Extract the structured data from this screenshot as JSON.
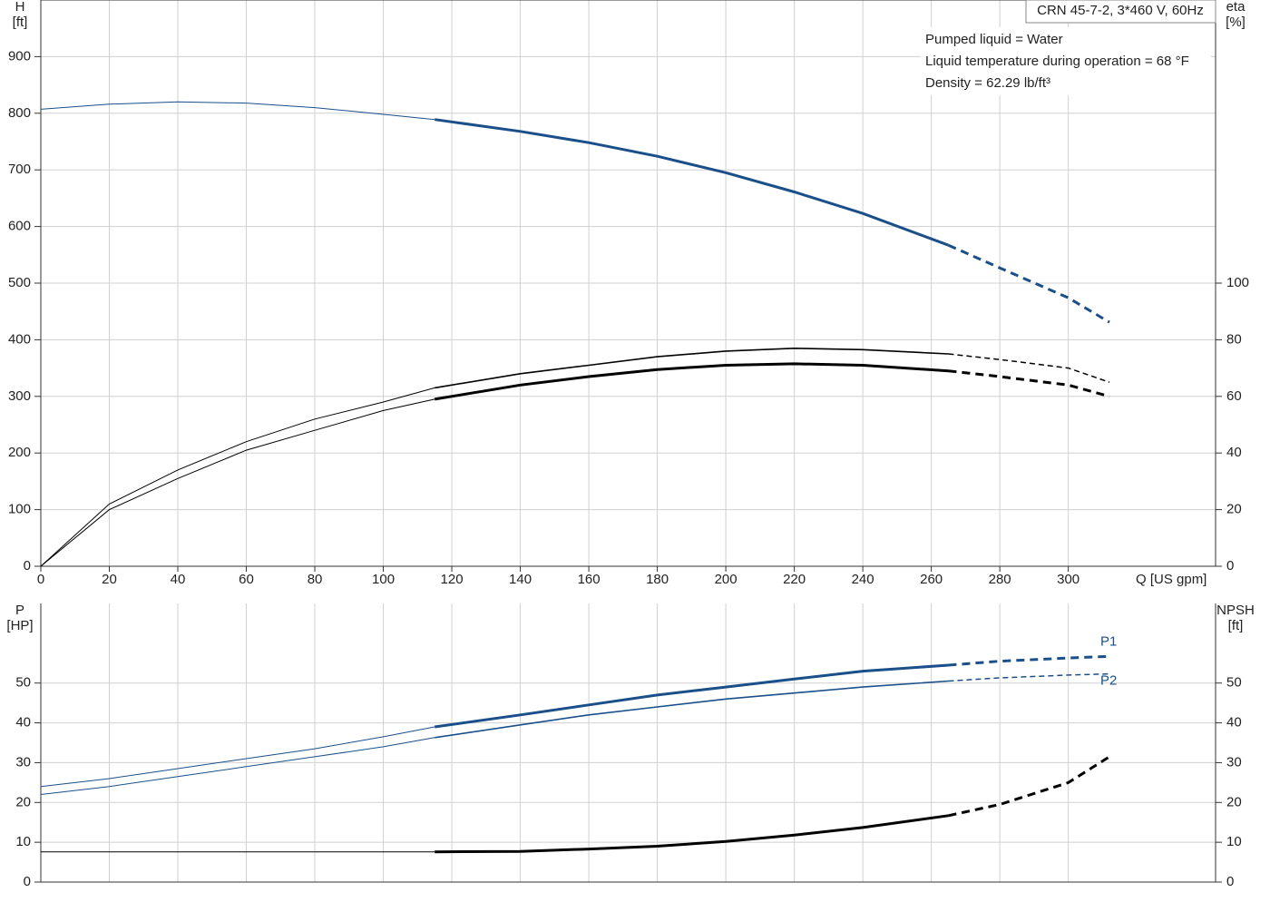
{
  "chart_data": [
    {
      "type": "line",
      "title": "CRN 45-7-2, 3*460 V, 60Hz",
      "notes": [
        "Pumped liquid = Water",
        "Liquid temperature during operation = 68 °F",
        "Density = 62.29 lb/ft³"
      ],
      "x_label": "Q [US gpm]",
      "y_label": "H",
      "y_unit": "[ft]",
      "y2_label": "eta",
      "y2_unit": "[%]",
      "xlim": [
        0,
        343
      ],
      "xticks": [
        0,
        20,
        40,
        60,
        80,
        100,
        120,
        140,
        160,
        180,
        200,
        220,
        240,
        260,
        280,
        300
      ],
      "ylim": [
        0,
        1000
      ],
      "yticks": [
        0,
        100,
        200,
        300,
        400,
        500,
        600,
        700,
        800,
        900
      ],
      "y2lim": [
        0,
        200
      ],
      "y2ticks": [
        0,
        20,
        40,
        60,
        80,
        100
      ],
      "grid": true,
      "series": [
        {
          "color": "#1a4f8a",
          "axis": "y",
          "segments": [
            {
              "style": "thin",
              "x": [
                0,
                20,
                40,
                60,
                80,
                100,
                115
              ],
              "values": [
                807,
                816,
                820,
                818,
                810,
                798,
                789
              ]
            },
            {
              "style": "thick",
              "x": [
                115,
                140,
                160,
                180,
                200,
                220,
                240,
                265
              ],
              "values": [
                789,
                768,
                748,
                724,
                695,
                661,
                623,
                567
              ]
            },
            {
              "style": "dashed",
              "x": [
                265,
                280,
                300,
                312
              ],
              "values": [
                567,
                527,
                474,
                431
              ]
            }
          ]
        },
        {
          "color": "#000000",
          "axis": "y2",
          "segments": [
            {
              "style": "thin",
              "x": [
                0,
                20,
                40,
                60,
                80,
                100,
                115
              ],
              "values": [
                0,
                22,
                34,
                44,
                52,
                58,
                63
              ]
            },
            {
              "style": "medium",
              "x": [
                115,
                140,
                160,
                180,
                200,
                220,
                240,
                265
              ],
              "values": [
                63,
                68,
                71,
                74,
                76,
                77,
                76.5,
                75
              ]
            },
            {
              "style": "thin-dashed",
              "x": [
                265,
                280,
                300,
                312
              ],
              "values": [
                75,
                73,
                70,
                65
              ]
            }
          ]
        },
        {
          "color": "#000000",
          "axis": "y2",
          "segments": [
            {
              "style": "thin",
              "x": [
                0,
                20,
                40,
                60,
                80,
                100,
                115
              ],
              "values": [
                0,
                20,
                31,
                41,
                48,
                55,
                59
              ]
            },
            {
              "style": "thick",
              "x": [
                115,
                140,
                160,
                180,
                200,
                220,
                240,
                265
              ],
              "values": [
                59,
                64,
                67,
                69.5,
                71,
                71.5,
                71,
                69
              ]
            },
            {
              "style": "dashed",
              "x": [
                265,
                280,
                300,
                312
              ],
              "values": [
                69,
                67,
                64,
                60
              ]
            }
          ]
        }
      ]
    },
    {
      "type": "line",
      "y_label": "P",
      "y_unit": "[HP]",
      "y2_label": "NPSH",
      "y2_unit": "[ft]",
      "xlim": [
        0,
        343
      ],
      "xticks": [
        0,
        20,
        40,
        60,
        80,
        100,
        120,
        140,
        160,
        180,
        200,
        220,
        240,
        260,
        280,
        300
      ],
      "ylim": [
        0,
        70
      ],
      "yticks": [
        0,
        10,
        20,
        30,
        40,
        50
      ],
      "y2lim": [
        0,
        70
      ],
      "y2ticks": [
        0,
        10,
        20,
        30,
        40,
        50
      ],
      "grid": true,
      "series": [
        {
          "name": "P1",
          "color": "#1a4f8a",
          "axis": "y",
          "segments": [
            {
              "style": "thin",
              "x": [
                0,
                20,
                40,
                60,
                80,
                100,
                115
              ],
              "values": [
                24,
                26,
                28.5,
                31,
                33.5,
                36.5,
                39
              ]
            },
            {
              "style": "thick",
              "x": [
                115,
                140,
                160,
                180,
                200,
                220,
                240,
                265
              ],
              "values": [
                39,
                42,
                44.5,
                47,
                49,
                51,
                53,
                54.5
              ]
            },
            {
              "style": "dashed",
              "x": [
                265,
                280,
                300,
                312
              ],
              "values": [
                54.5,
                55.5,
                56.3,
                56.7
              ]
            }
          ]
        },
        {
          "name": "P2",
          "color": "#1a4f8a",
          "axis": "y",
          "segments": [
            {
              "style": "thin",
              "x": [
                0,
                20,
                40,
                60,
                80,
                100,
                115
              ],
              "values": [
                22,
                24,
                26.5,
                29,
                31.5,
                34,
                36.3
              ]
            },
            {
              "style": "medium",
              "x": [
                115,
                140,
                160,
                180,
                200,
                220,
                240,
                265
              ],
              "values": [
                36.3,
                39.5,
                42,
                44,
                46,
                47.5,
                49,
                50.5
              ]
            },
            {
              "style": "thin-dashed",
              "x": [
                265,
                280,
                300,
                312
              ],
              "values": [
                50.5,
                51.3,
                52,
                52.3
              ]
            }
          ]
        },
        {
          "color": "#000000",
          "axis": "y2",
          "segments": [
            {
              "style": "thin",
              "x": [
                0,
                40,
                80,
                115
              ],
              "values": [
                7.6,
                7.6,
                7.6,
                7.6
              ]
            },
            {
              "style": "thick",
              "x": [
                115,
                140,
                160,
                180,
                200,
                220,
                240,
                265
              ],
              "values": [
                7.6,
                7.7,
                8.3,
                9,
                10.2,
                11.8,
                13.7,
                16.7
              ]
            },
            {
              "style": "dashed",
              "x": [
                265,
                280,
                300,
                312
              ],
              "values": [
                16.7,
                19.5,
                25,
                31.5
              ]
            }
          ]
        }
      ]
    }
  ]
}
